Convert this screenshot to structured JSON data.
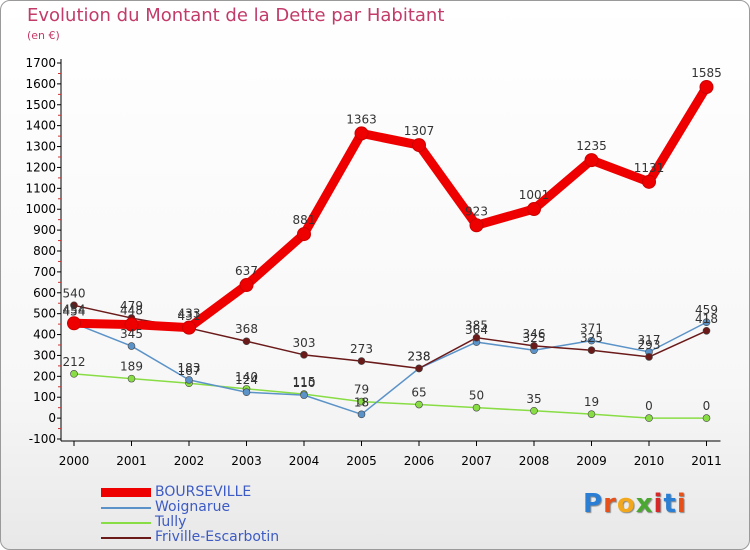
{
  "header": {
    "title": "Evolution du Montant de la Dette par Habitant",
    "unit": "(en €)"
  },
  "chart_data": {
    "type": "line",
    "title": "Evolution du Montant de la Dette par Habitant",
    "subtitle": "(en €)",
    "xlabel": "",
    "ylabel": "",
    "x": [
      "2000",
      "2001",
      "2002",
      "2003",
      "2004",
      "2005",
      "2006",
      "2007",
      "2008",
      "2009",
      "2010",
      "2011"
    ],
    "ylim": [
      -100,
      1700
    ],
    "yticks": [
      -100,
      0,
      100,
      200,
      300,
      400,
      500,
      600,
      700,
      800,
      900,
      1000,
      1100,
      1200,
      1300,
      1400,
      1500,
      1600,
      1700
    ],
    "grid": false,
    "legend_position": "bottom-left",
    "series": [
      {
        "name": "BOURSEVILLE",
        "color": "#ee0000",
        "values": [
          454,
          448,
          433,
          637,
          881,
          1363,
          1307,
          923,
          1001,
          1235,
          1131,
          1585
        ],
        "labels": [
          "454",
          "448",
          "433",
          "637",
          "881",
          "1363",
          "1307",
          "923",
          "1001",
          "1235",
          "1131",
          "1585"
        ]
      },
      {
        "name": "Woignarue",
        "color": "#5b93c8",
        "values": [
          454,
          345,
          183,
          124,
          110,
          18,
          238,
          364,
          325,
          371,
          317,
          459
        ],
        "labels": [
          "454",
          "345",
          "183",
          "124",
          "110",
          "18",
          "238",
          "364",
          "325",
          "371",
          "317",
          "459"
        ]
      },
      {
        "name": "Tully",
        "color": "#88dd44",
        "values": [
          212,
          189,
          167,
          140,
          115,
          79,
          65,
          50,
          35,
          19,
          0,
          0
        ],
        "labels": [
          "212",
          "189",
          "167",
          "140",
          "115",
          "79",
          "65",
          "50",
          "35",
          "19",
          "0",
          "0"
        ]
      },
      {
        "name": "Friville-Escarbotin",
        "color": "#6b1a1a",
        "values": [
          540,
          479,
          431,
          368,
          303,
          273,
          238,
          385,
          346,
          325,
          293,
          418
        ],
        "labels": [
          "540",
          "479",
          "431",
          "368",
          "303",
          "273",
          "238",
          "385",
          "346",
          "325",
          "293",
          "418"
        ]
      }
    ]
  },
  "logo": {
    "text": "Proxiti",
    "colors": [
      "#2a7fd4",
      "#e8501a",
      "#f2a81c",
      "#4aa832",
      "#d62828",
      "#2a7fd4",
      "#e8501a"
    ]
  }
}
